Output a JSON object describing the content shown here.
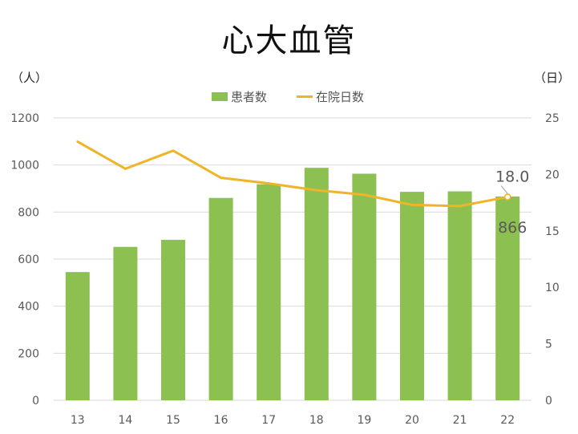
{
  "title": "心大血管",
  "left_unit": "（人）",
  "right_unit": "（日）",
  "legend": {
    "bar": "患者数",
    "line": "在院日数"
  },
  "colors": {
    "bar": "#8CC152",
    "line": "#F0B429",
    "grid": "#D9D9D9",
    "text": "#595959"
  },
  "chart_data": {
    "type": "bar",
    "categories": [
      "13",
      "14",
      "15",
      "16",
      "17",
      "18",
      "19",
      "20",
      "21",
      "22"
    ],
    "series": [
      {
        "name": "患者数",
        "type": "bar",
        "axis": "left",
        "values": [
          545,
          652,
          682,
          860,
          918,
          988,
          963,
          886,
          888,
          866
        ]
      },
      {
        "name": "在院日数",
        "type": "line",
        "axis": "right",
        "values": [
          22.9,
          20.5,
          22.1,
          19.7,
          19.2,
          18.6,
          18.2,
          17.3,
          17.2,
          18.0
        ]
      }
    ],
    "y_left": {
      "min": 0,
      "max": 1200,
      "ticks": [
        0,
        200,
        400,
        600,
        800,
        1000,
        1200
      ]
    },
    "y_right": {
      "min": 0,
      "max": 25,
      "ticks": [
        0,
        5,
        10,
        15,
        20,
        25
      ]
    },
    "data_labels": {
      "line_last": "18.0",
      "bar_last": "866"
    },
    "grid": true,
    "legend_position": "top"
  }
}
